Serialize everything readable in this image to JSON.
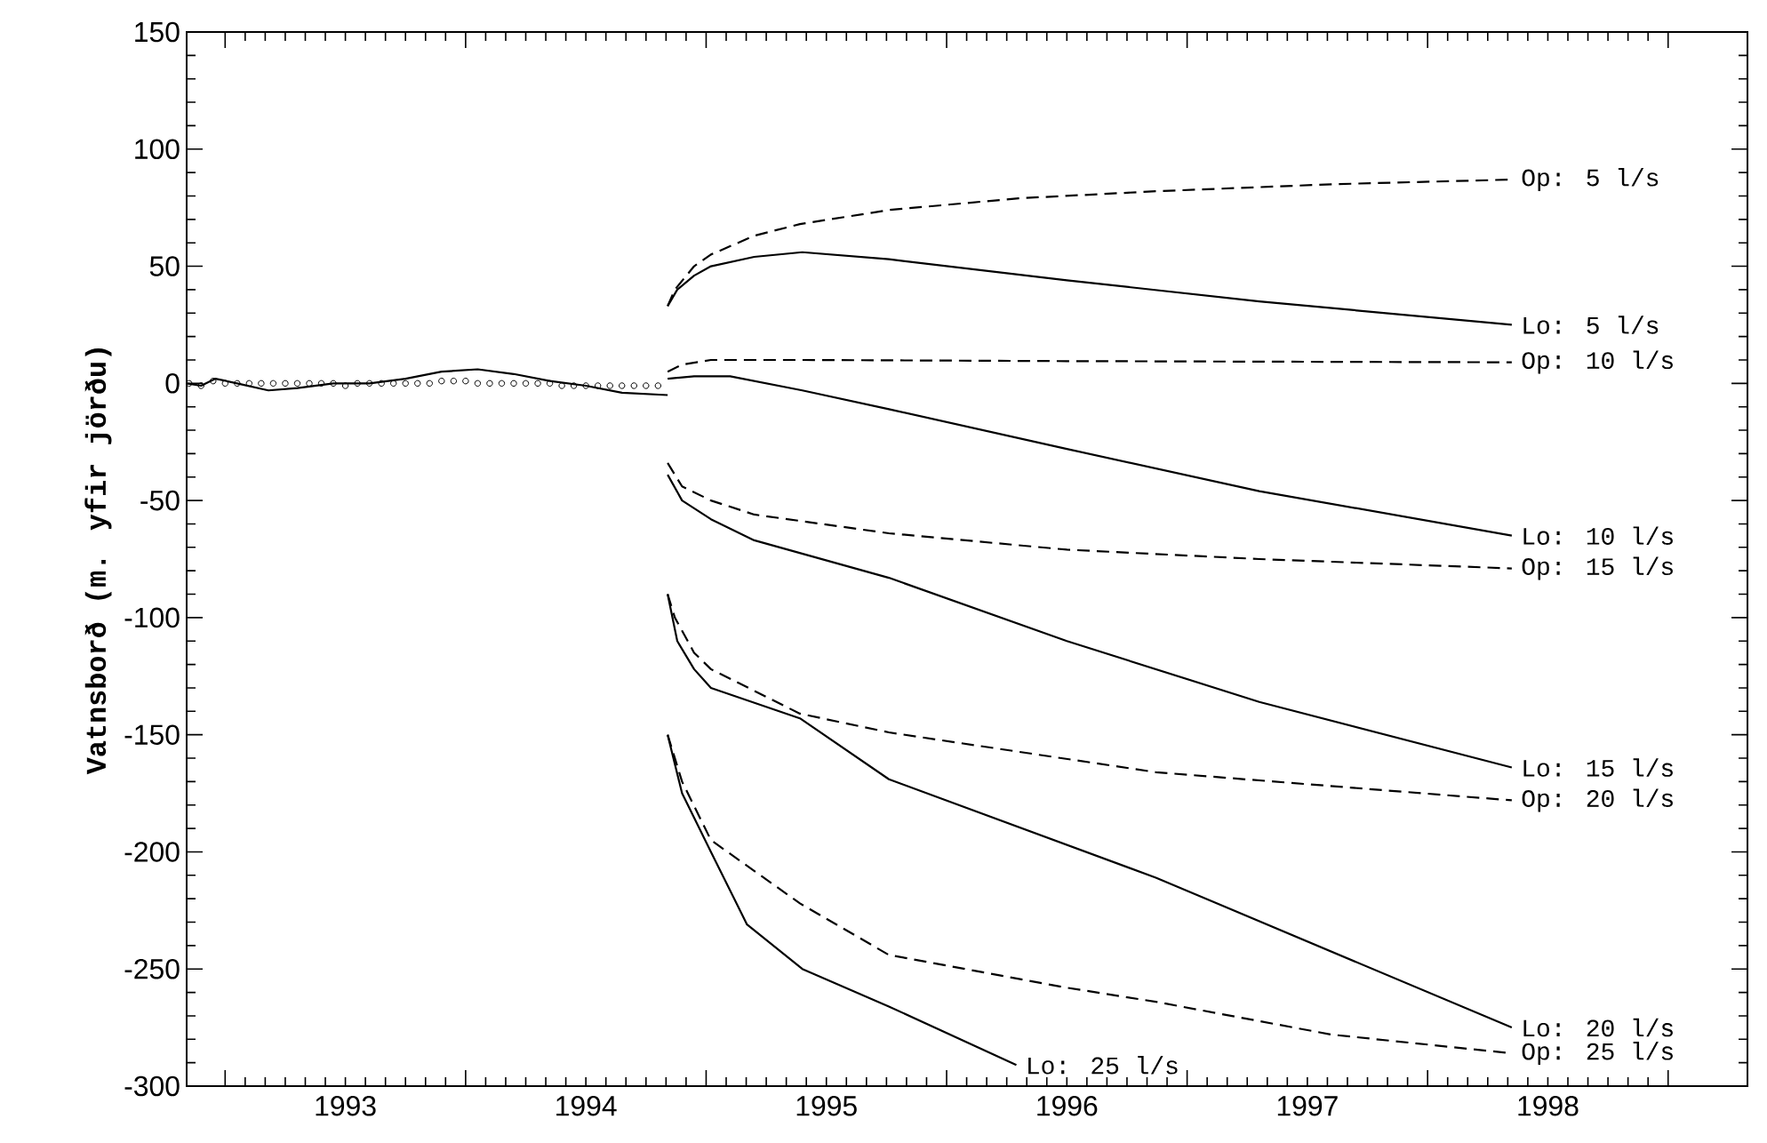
{
  "chart_data": {
    "type": "line",
    "ylabel": "Vatnsborð (m. yfir jörðu)",
    "xlim": [
      1992.84,
      1999.33
    ],
    "ylim": [
      -300,
      150
    ],
    "xticks": [
      {
        "value": 1993,
        "label": null
      },
      {
        "value": 1993.5,
        "label": "1993"
      },
      {
        "value": 1994,
        "label": null
      },
      {
        "value": 1994.5,
        "label": "1994"
      },
      {
        "value": 1995,
        "label": null
      },
      {
        "value": 1995.5,
        "label": "1995"
      },
      {
        "value": 1996,
        "label": null
      },
      {
        "value": 1996.5,
        "label": "1996"
      },
      {
        "value": 1997,
        "label": null
      },
      {
        "value": 1997.5,
        "label": "1997"
      },
      {
        "value": 1998,
        "label": null
      },
      {
        "value": 1998.5,
        "label": "1998"
      },
      {
        "value": 1999,
        "label": null
      }
    ],
    "yticks": [
      -300,
      -250,
      -200,
      -150,
      -100,
      -50,
      0,
      50,
      100,
      150
    ],
    "tick_labels": "xy",
    "series": [
      {
        "type": "scatter",
        "marker": "circle",
        "color": "#000000",
        "x": [
          1992.85,
          1992.9,
          1992.95,
          1993.0,
          1993.05,
          1993.1,
          1993.15,
          1993.2,
          1993.25,
          1993.3,
          1993.35,
          1993.4,
          1993.45,
          1993.5,
          1993.55,
          1993.6,
          1993.65,
          1993.7,
          1993.75,
          1993.8,
          1993.85,
          1993.9,
          1993.95,
          1994.0,
          1994.05,
          1994.1,
          1994.15,
          1994.2,
          1994.25,
          1994.3,
          1994.35,
          1994.4,
          1994.45,
          1994.5,
          1994.55,
          1994.6,
          1994.65,
          1994.7,
          1994.75,
          1994.8
        ],
        "values": [
          0,
          -1,
          1,
          0,
          0,
          0,
          0,
          0,
          0,
          0,
          0,
          0,
          0,
          -1,
          0,
          0,
          0,
          0,
          0,
          0,
          0,
          1,
          1,
          1,
          0,
          0,
          0,
          0,
          0,
          0,
          0,
          -1,
          -1,
          -1,
          -1,
          -1,
          -1,
          -1,
          -1,
          -1
        ]
      },
      {
        "line_style": "solid",
        "color": "#000000",
        "x": [
          1992.84,
          1992.9,
          1992.96,
          1993.05,
          1993.18,
          1993.3,
          1993.45,
          1993.6,
          1993.75,
          1993.9,
          1994.05,
          1994.2,
          1994.35,
          1994.5,
          1994.65,
          1994.84
        ],
        "values": [
          0,
          -1,
          2,
          0,
          -3,
          -2,
          0,
          0,
          2,
          5,
          6,
          4,
          1,
          -1,
          -4,
          -5
        ]
      },
      {
        "name": "Op:  5 l/s",
        "line_style": "dashed",
        "color": "#000000",
        "x": [
          1994.84,
          1994.87,
          1994.95,
          1995.02,
          1995.2,
          1995.39,
          1995.76,
          1996.3,
          1996.87,
          1997.6,
          1998.35
        ],
        "values": [
          33,
          40,
          50,
          55,
          63,
          68,
          74,
          79,
          82,
          85,
          87
        ]
      },
      {
        "name": "Lo:  5 l/s",
        "line_style": "solid",
        "color": "#000000",
        "x": [
          1994.84,
          1994.88,
          1994.95,
          1995.02,
          1995.2,
          1995.4,
          1995.76,
          1996.5,
          1997.3,
          1998.35
        ],
        "values": [
          33,
          40,
          46,
          50,
          54,
          56,
          53,
          44,
          35,
          25
        ]
      },
      {
        "name": "Op: 10 l/s",
        "line_style": "dashed",
        "color": "#000000",
        "x": [
          1994.84,
          1994.9,
          1995.02,
          1995.4,
          1996.5,
          1998.35
        ],
        "values": [
          5,
          8,
          10,
          10,
          9.5,
          9
        ]
      },
      {
        "name": "Lo: 10 l/s",
        "line_style": "solid",
        "color": "#000000",
        "x": [
          1994.84,
          1994.95,
          1995.1,
          1995.4,
          1995.76,
          1996.5,
          1997.3,
          1998.35
        ],
        "values": [
          2,
          3,
          3,
          -3,
          -11,
          -28,
          -46,
          -65
        ]
      },
      {
        "name": "Op: 15 l/s",
        "line_style": "dashed",
        "color": "#000000",
        "x": [
          1994.84,
          1994.9,
          1995.02,
          1995.2,
          1995.76,
          1996.5,
          1997.3,
          1998.35
        ],
        "values": [
          -34,
          -44,
          -50,
          -56,
          -64,
          -71,
          -75,
          -79
        ]
      },
      {
        "name": "Lo: 15 l/s",
        "line_style": "solid",
        "color": "#000000",
        "x": [
          1994.84,
          1994.9,
          1995.02,
          1995.2,
          1995.76,
          1996.5,
          1997.3,
          1998.35
        ],
        "values": [
          -39,
          -50,
          -58,
          -67,
          -83,
          -110,
          -136,
          -164
        ]
      },
      {
        "name": "Op: 20 l/s",
        "line_style": "dashed",
        "color": "#000000",
        "x": [
          1994.84,
          1994.87,
          1994.95,
          1995.02,
          1995.39,
          1995.76,
          1996.87,
          1998.35
        ],
        "values": [
          -90,
          -100,
          -115,
          -122,
          -141,
          -149,
          -166,
          -178
        ]
      },
      {
        "name": "Lo: 20 l/s",
        "line_style": "solid",
        "color": "#000000",
        "x": [
          1994.84,
          1994.88,
          1994.95,
          1995.02,
          1995.39,
          1995.76,
          1996.87,
          1998.35
        ],
        "values": [
          -90,
          -110,
          -122,
          -130,
          -143,
          -169,
          -211,
          -275
        ]
      },
      {
        "name": "Op: 25 l/s",
        "line_style": "dashed",
        "color": "#000000",
        "x": [
          1994.84,
          1994.9,
          1995.02,
          1995.39,
          1995.76,
          1996.5,
          1996.87,
          1997.6,
          1998.35
        ],
        "values": [
          -150,
          -170,
          -195,
          -222,
          -244,
          -258,
          -264,
          -278,
          -286
        ]
      },
      {
        "name": "Lo: 25 l/s",
        "line_style": "solid",
        "color": "#000000",
        "x": [
          1994.84,
          1994.9,
          1995.02,
          1995.17,
          1995.4,
          1995.76,
          1996.29
        ],
        "values": [
          -150,
          -175,
          -200,
          -231,
          -250,
          -266,
          -291
        ]
      }
    ]
  }
}
